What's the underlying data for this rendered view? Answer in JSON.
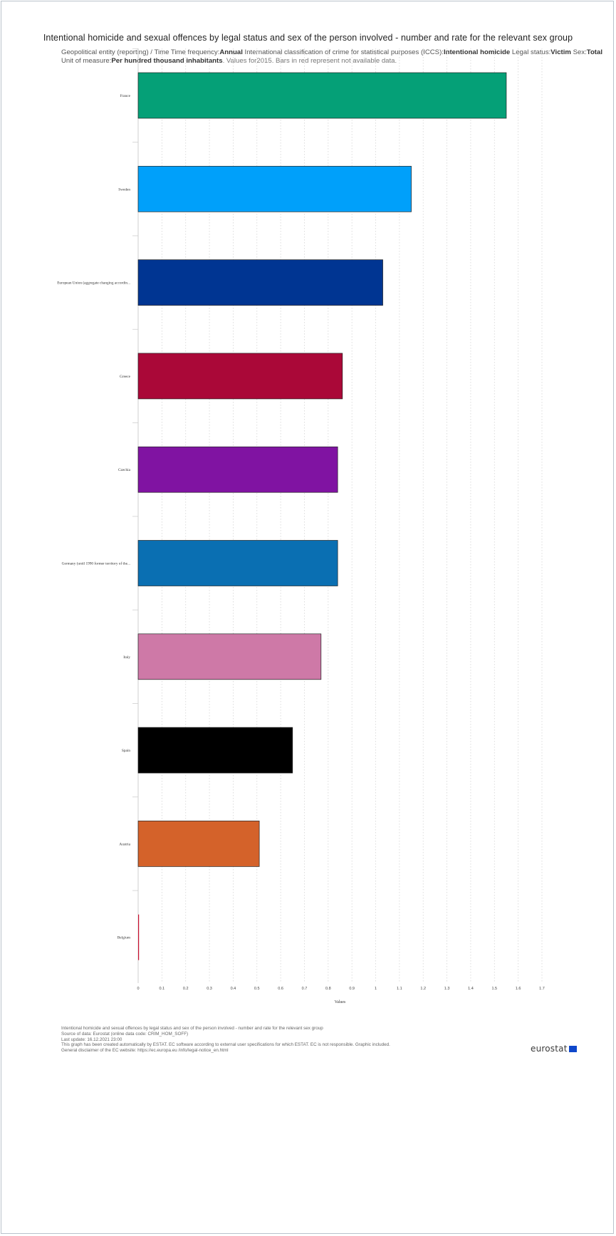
{
  "header": {
    "title": "Intentional homicide and sexual offences by legal status and sex of the person involved - number and rate for the relevant sex group",
    "subtitle_parts": [
      {
        "t": "Geopolitical entity (reporting) / Time  Time frequency:",
        "b": false
      },
      {
        "t": "Annual",
        "b": true
      },
      {
        "t": "  International classification of crime for statistical purposes (ICCS):",
        "b": false
      },
      {
        "t": "Intentional homicide",
        "b": true
      },
      {
        "t": "  Legal status:",
        "b": false
      },
      {
        "t": "Victim",
        "b": true
      },
      {
        "t": "  Sex:",
        "b": false
      },
      {
        "t": "Total",
        "b": true
      },
      {
        "t": "  Unit of measure:",
        "b": false
      },
      {
        "t": "Per hundred thousand inhabitants",
        "b": true
      }
    ],
    "note": ". Values for2015. Bars in red represent not available data."
  },
  "chart_data": {
    "type": "bar",
    "orientation": "horizontal",
    "categories": [
      "France",
      "Sweden",
      "European Union (aggregate changing accordin...",
      "Greece",
      "Czechia",
      "Germany (until 1990 former territory of the...",
      "Italy",
      "Spain",
      "Austria",
      "Belgium"
    ],
    "values": [
      1.55,
      1.15,
      1.03,
      0.86,
      0.84,
      0.84,
      0.77,
      0.65,
      0.51,
      0.0
    ],
    "colors": [
      "#05a077",
      "#00a0fa",
      "#003592",
      "#aa0838",
      "#8013a2",
      "#0a6fb2",
      "#ce79a7",
      "#000000",
      "#d4622a",
      "#c8102e"
    ],
    "xlabel": "Values",
    "xlim": [
      0,
      1.7
    ],
    "xticks": [
      "0",
      "0.1",
      "0.2",
      "0.3",
      "0.4",
      "0.5",
      "0.6",
      "0.7",
      "0.8",
      "0.9",
      "1",
      "1.1",
      "1.2",
      "1.3",
      "1.4",
      "1.5",
      "1.6",
      "1.7"
    ],
    "grid": true,
    "legend": false
  },
  "footer": {
    "lines": [
      "Intentional homicide and sexual offences by legal status and sex of the person involved - number and rate for the relevant sex group",
      "Source of data: Eurostat (online data code: CRIM_HOM_SOFF)",
      "Last update: 16.12.2021 23:00",
      "This graph has been created automatically by ESTAT. EC software according to external user specifications for which ESTAT. EC is not responsible. Graphic included.",
      "General disclaimer of the EC website: https://ec.europa.eu /info/legal-notice_en.html"
    ],
    "logo_text": "eurostat"
  }
}
